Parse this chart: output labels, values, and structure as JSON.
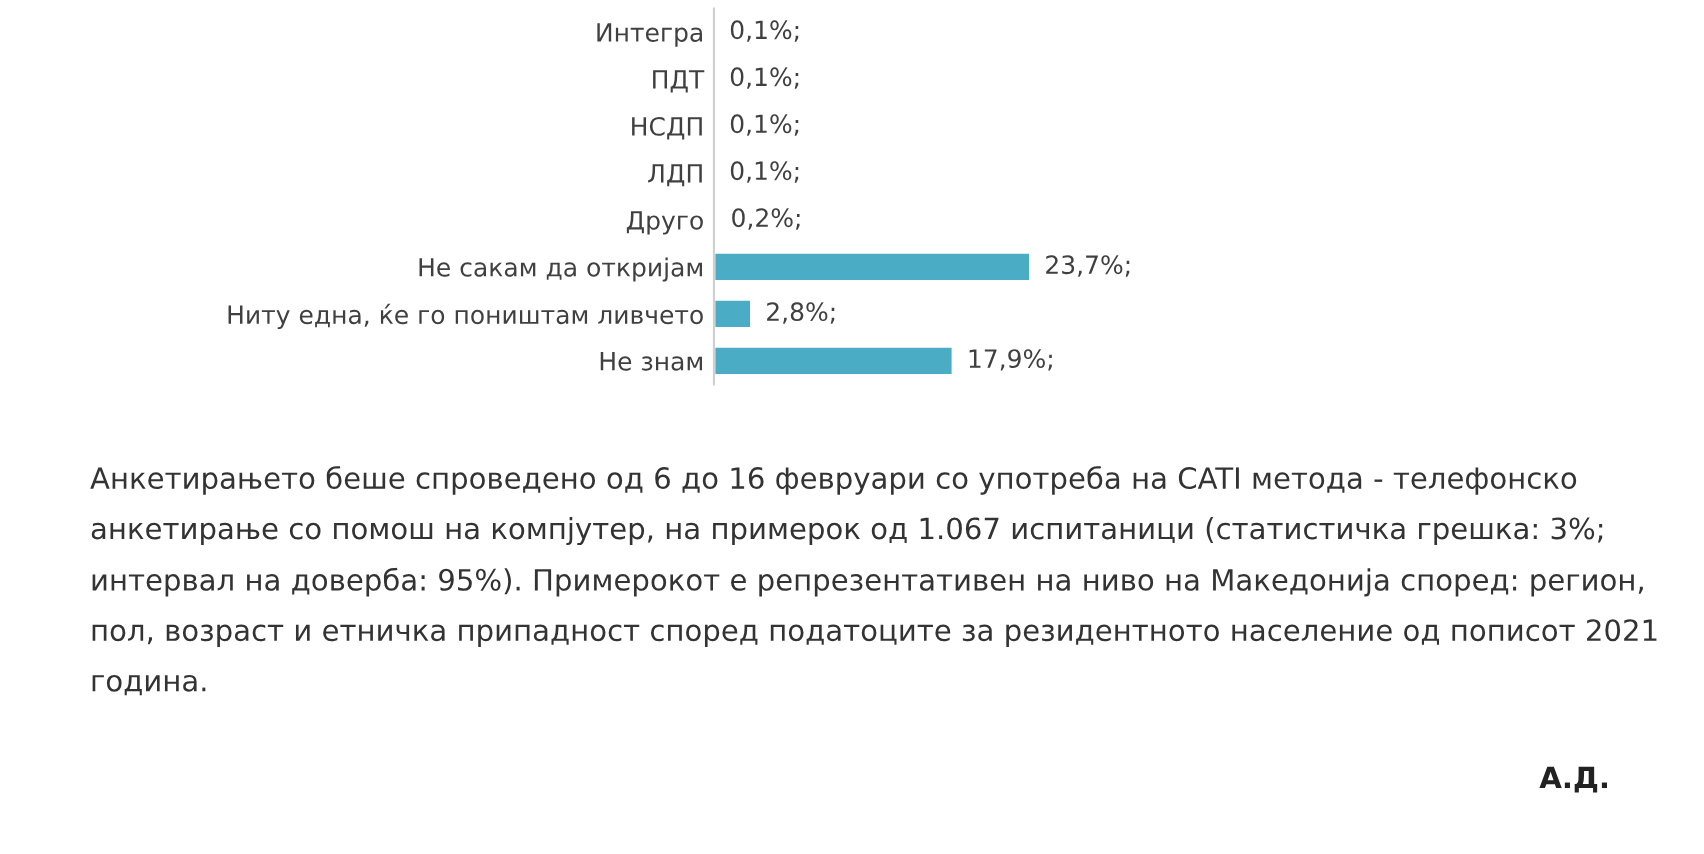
{
  "chart_data": {
    "type": "bar",
    "orientation": "horizontal",
    "categories": [
      "Интегра",
      "ПДТ",
      "НСДП",
      "ЛДП",
      "Друго",
      "Не сакам да откријам",
      "Ниту една, ќе го поништам ливчето",
      "Не знам"
    ],
    "values": [
      0.1,
      0.1,
      0.1,
      0.1,
      0.2,
      23.7,
      2.8,
      17.9
    ],
    "value_labels": [
      "0,1%;",
      "0,1%;",
      "0,1%;",
      "0,1%;",
      "0,2%;",
      "23,7%;",
      "2,8%;",
      "17,9%;"
    ],
    "color": "#4bacc6",
    "tick_labels": "y",
    "grid": false,
    "legend": false,
    "annotations": [
      "Анкетирањето беше спроведено од 6 до 16 февруари со употреба на CATI метода - телефонско\nанкетирање со помош на компјутер, на примерок од 1.067 испитаници (статистичка грешка: 3%;\nинтервал на доверба: 95%). Примерокот е репрезентативен на ниво на Македонија според: регион,\nпол, возраст и етничка припадност според податоците за резидентното население од пописот 2021\nгодина.",
      "А.Д."
    ]
  }
}
